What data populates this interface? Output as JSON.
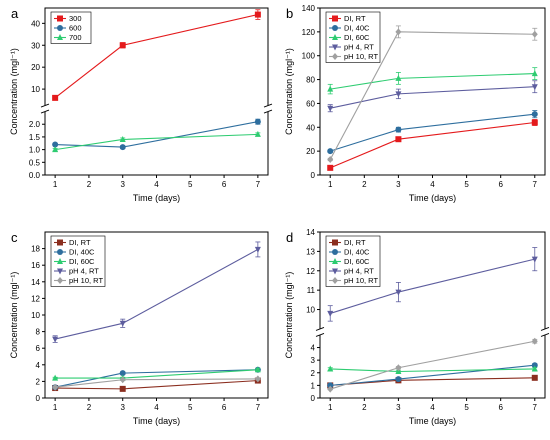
{
  "chart_data": [
    {
      "type": "line",
      "panel": "a",
      "xlabel": "Time (days)",
      "ylabel": "Concentration (mgl⁻¹)",
      "x_ticks": [
        "1",
        "2",
        "3",
        "4",
        "5",
        "6",
        "7"
      ],
      "x": [
        1,
        3,
        7
      ],
      "xlim": [
        1,
        7
      ],
      "y_broken": true,
      "y_lower": {
        "range": [
          0,
          2.5
        ],
        "ticks": [
          "0.0",
          "0.5",
          "1.0",
          "1.5",
          "2.0"
        ]
      },
      "y_upper": {
        "range": [
          2.5,
          47
        ],
        "ticks": [
          "10",
          "20",
          "30",
          "40"
        ]
      },
      "legend_position": "top-left",
      "series": [
        {
          "name": "300",
          "color": "#e41a1c",
          "marker": "square",
          "values": [
            6,
            30,
            44
          ],
          "errors": [
            0.5,
            1.2,
            2.2
          ]
        },
        {
          "name": "600",
          "color": "#2e6e9e",
          "marker": "circle",
          "values": [
            1.2,
            1.1,
            2.1
          ],
          "errors": [
            0.05,
            0.05,
            0.1
          ]
        },
        {
          "name": "700",
          "color": "#2ecc71",
          "marker": "triangle",
          "values": [
            1.0,
            1.4,
            1.6
          ],
          "errors": [
            0.05,
            0.06,
            0.06
          ]
        }
      ]
    },
    {
      "type": "line",
      "panel": "b",
      "xlabel": "Time (days)",
      "ylabel": "Concentration (mgl⁻¹)",
      "x_ticks": [
        "1",
        "2",
        "3",
        "4",
        "5",
        "6",
        "7"
      ],
      "x": [
        1,
        3,
        7
      ],
      "xlim": [
        1,
        7
      ],
      "ylim": [
        0,
        140
      ],
      "y_ticks": [
        "0",
        "20",
        "40",
        "60",
        "80",
        "100",
        "120",
        "140"
      ],
      "legend_position": "top-left",
      "series": [
        {
          "name": "DI, RT",
          "color": "#e41a1c",
          "marker": "square",
          "values": [
            6,
            30,
            44
          ],
          "errors": [
            0.8,
            1.2,
            2.5
          ]
        },
        {
          "name": "DI, 40C",
          "color": "#2e6e9e",
          "marker": "circle",
          "values": [
            20,
            38,
            51
          ],
          "errors": [
            1,
            2,
            3
          ]
        },
        {
          "name": "DI, 60C",
          "color": "#2ecc71",
          "marker": "triangle",
          "values": [
            72,
            81,
            85
          ],
          "errors": [
            4,
            5,
            5
          ]
        },
        {
          "name": "pH 4, RT",
          "color": "#5d5d9e",
          "marker": "triangle-down",
          "values": [
            56,
            68,
            74
          ],
          "errors": [
            3,
            4,
            5
          ]
        },
        {
          "name": "pH 10, RT",
          "color": "#a0a0a0",
          "marker": "diamond",
          "values": [
            13,
            120,
            118
          ],
          "errors": [
            1,
            5,
            5
          ]
        }
      ]
    },
    {
      "type": "line",
      "panel": "c",
      "xlabel": "Time (days)",
      "ylabel": "Concentration (mgl⁻¹)",
      "x_ticks": [
        "1",
        "2",
        "3",
        "4",
        "5",
        "6",
        "7"
      ],
      "x": [
        1,
        3,
        7
      ],
      "xlim": [
        1,
        7
      ],
      "ylim": [
        0,
        20
      ],
      "y_ticks": [
        "0",
        "2",
        "4",
        "6",
        "8",
        "10",
        "12",
        "14",
        "16",
        "18"
      ],
      "legend_position": "top-left",
      "series": [
        {
          "name": "DI, RT",
          "color": "#8b2e1f",
          "marker": "square",
          "values": [
            1.2,
            1.1,
            2.1
          ],
          "errors": [
            0.1,
            0.1,
            0.2
          ]
        },
        {
          "name": "DI, 40C",
          "color": "#2e6e9e",
          "marker": "circle",
          "values": [
            1.3,
            3.0,
            3.4
          ],
          "errors": [
            0.1,
            0.15,
            0.15
          ]
        },
        {
          "name": "DI, 60C",
          "color": "#2ecc71",
          "marker": "triangle",
          "values": [
            2.4,
            2.4,
            3.4
          ],
          "errors": [
            0.1,
            0.1,
            0.15
          ]
        },
        {
          "name": "pH 4, RT",
          "color": "#5d5d9e",
          "marker": "triangle-down",
          "values": [
            7.1,
            9.0,
            17.9
          ],
          "errors": [
            0.4,
            0.5,
            0.9
          ]
        },
        {
          "name": "pH 10, RT",
          "color": "#a0a0a0",
          "marker": "diamond",
          "values": [
            1.3,
            2.2,
            2.3
          ],
          "errors": [
            0.1,
            0.1,
            0.1
          ]
        }
      ]
    },
    {
      "type": "line",
      "panel": "d",
      "xlabel": "Time (days)",
      "ylabel": "Concentration (mgl⁻¹)",
      "x_ticks": [
        "1",
        "2",
        "3",
        "4",
        "5",
        "6",
        "7"
      ],
      "x": [
        1,
        3,
        7
      ],
      "xlim": [
        1,
        7
      ],
      "y_broken": true,
      "y_lower": {
        "range": [
          0,
          5
        ],
        "ticks": [
          "0",
          "1",
          "2",
          "3",
          "4"
        ]
      },
      "y_upper": {
        "range": [
          9,
          14
        ],
        "ticks": [
          "10",
          "11",
          "12",
          "13",
          "14"
        ]
      },
      "legend_position": "top-left",
      "series": [
        {
          "name": "DI, RT",
          "color": "#8b2e1f",
          "marker": "square",
          "values": [
            1.0,
            1.4,
            1.6
          ],
          "errors": [
            0.05,
            0.05,
            0.05
          ]
        },
        {
          "name": "DI, 40C",
          "color": "#2e6e9e",
          "marker": "circle",
          "values": [
            1.0,
            1.5,
            2.6
          ],
          "errors": [
            0.05,
            0.06,
            0.1
          ]
        },
        {
          "name": "DI, 60C",
          "color": "#2ecc71",
          "marker": "triangle",
          "values": [
            2.3,
            2.1,
            2.3
          ],
          "errors": [
            0.1,
            0.1,
            0.1
          ]
        },
        {
          "name": "pH 4, RT",
          "color": "#5d5d9e",
          "marker": "triangle-down",
          "values": [
            9.8,
            10.9,
            12.6
          ],
          "errors": [
            0.4,
            0.5,
            0.6
          ]
        },
        {
          "name": "pH 10, RT",
          "color": "#a0a0a0",
          "marker": "diamond",
          "values": [
            0.7,
            2.4,
            4.5
          ],
          "errors": [
            0.05,
            0.1,
            0.15
          ]
        }
      ]
    }
  ]
}
